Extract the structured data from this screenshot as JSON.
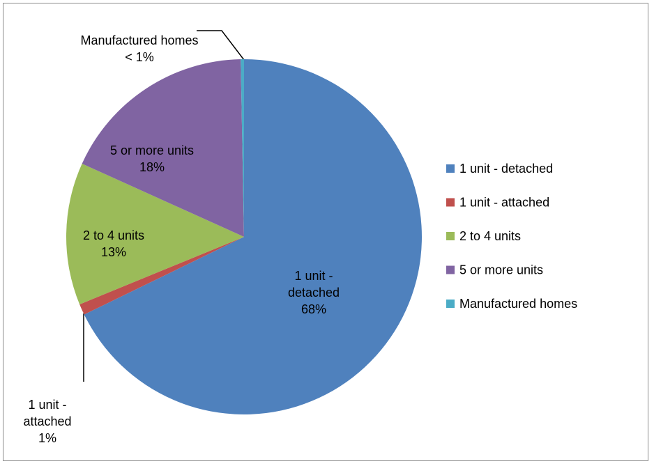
{
  "chart_data": {
    "type": "pie",
    "categories": [
      "1 unit - detached",
      "1 unit - attached",
      "2 to 4 units",
      "5 or more units",
      "Manufactured homes"
    ],
    "values": [
      68,
      1,
      13,
      18,
      0.3
    ],
    "value_labels": [
      "68%",
      "1%",
      "13%",
      "18%",
      "< 1%"
    ],
    "colors": [
      "#4f81bd",
      "#c0504d",
      "#9bbb59",
      "#8064a2",
      "#4bacc6"
    ],
    "legend": "right"
  }
}
